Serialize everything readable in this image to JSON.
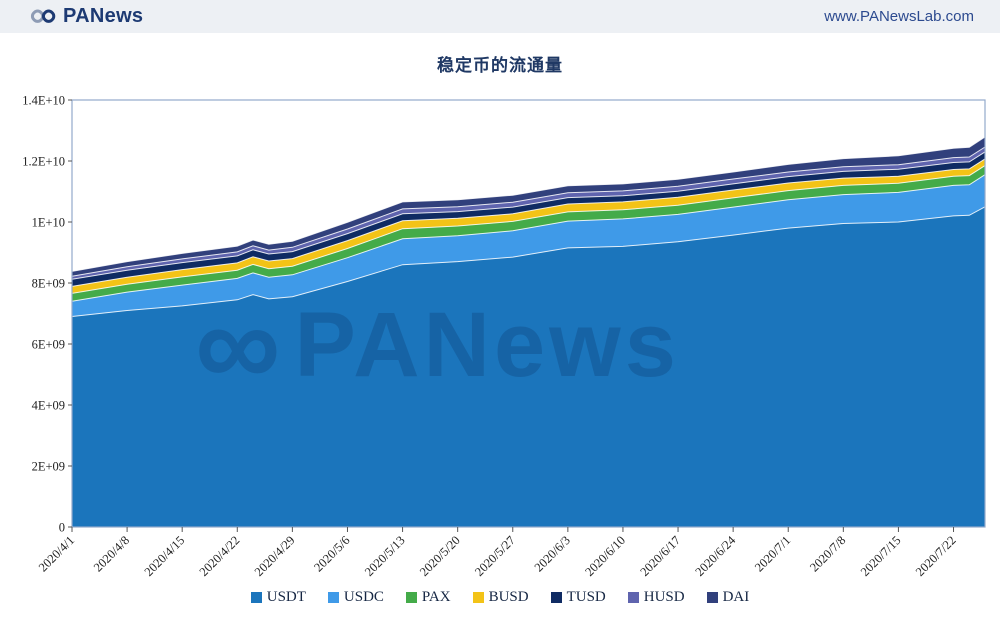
{
  "header": {
    "brand": "PANews",
    "url": "www.PANewsLab.com",
    "brand_color": "#1d3a73",
    "header_bg": "#edf0f4"
  },
  "watermark": {
    "text": "PANews",
    "symbol": "∞"
  },
  "chart_data": {
    "type": "area",
    "stacked": true,
    "title": "稳定币的流通量",
    "xlabel": "",
    "ylabel": "",
    "grid": false,
    "legend_position": "bottom",
    "value_unit": 1000000000,
    "y_max": 14000000000,
    "y_ticks": [
      {
        "value": 0,
        "label": "0"
      },
      {
        "value": 2000000000,
        "label": "2E+09"
      },
      {
        "value": 4000000000,
        "label": "4E+09"
      },
      {
        "value": 6000000000,
        "label": "6E+09"
      },
      {
        "value": 8000000000,
        "label": "8E+09"
      },
      {
        "value": 10000000000,
        "label": "1E+10"
      },
      {
        "value": 12000000000,
        "label": "1.2E+10"
      },
      {
        "value": 14000000000,
        "label": "1.4E+10"
      }
    ],
    "x": [
      "2020/4/1",
      "2020/4/8",
      "2020/4/15",
      "2020/4/22",
      "2020/4/24",
      "2020/4/26",
      "2020/4/29",
      "2020/5/6",
      "2020/5/13",
      "2020/5/20",
      "2020/5/27",
      "2020/6/3",
      "2020/6/10",
      "2020/6/17",
      "2020/6/24",
      "2020/7/1",
      "2020/7/8",
      "2020/7/15",
      "2020/7/22",
      "2020/7/24",
      "2020/7/26"
    ],
    "tick_labels": [
      "2020/4/1",
      "2020/4/8",
      "2020/4/15",
      "2020/4/22",
      "2020/4/29",
      "2020/5/6",
      "2020/5/13",
      "2020/5/20",
      "2020/5/27",
      "2020/6/3",
      "2020/6/10",
      "2020/6/17",
      "2020/6/24",
      "2020/7/1",
      "2020/7/8",
      "2020/7/15",
      "2020/7/22"
    ],
    "series": [
      {
        "name": "USDT",
        "color": "#1b75bc",
        "values_billions": [
          6.9,
          7.1,
          7.25,
          7.45,
          7.62,
          7.48,
          7.55,
          8.05,
          8.6,
          8.7,
          8.85,
          9.15,
          9.2,
          9.35,
          9.57,
          9.8,
          9.95,
          10.0,
          10.2,
          10.22,
          10.5
        ]
      },
      {
        "name": "USDC",
        "color": "#3f9ae8",
        "values_billions": [
          0.5,
          0.6,
          0.68,
          0.7,
          0.71,
          0.71,
          0.72,
          0.78,
          0.85,
          0.85,
          0.86,
          0.88,
          0.9,
          0.9,
          0.92,
          0.93,
          0.95,
          0.97,
          1.0,
          1.0,
          1.05
        ]
      },
      {
        "name": "PAX",
        "color": "#44ab49",
        "values_billions": [
          0.26,
          0.26,
          0.27,
          0.27,
          0.28,
          0.28,
          0.28,
          0.3,
          0.33,
          0.32,
          0.31,
          0.3,
          0.3,
          0.3,
          0.3,
          0.3,
          0.3,
          0.3,
          0.3,
          0.3,
          0.3
        ]
      },
      {
        "name": "BUSD",
        "color": "#f3c317",
        "values_billions": [
          0.23,
          0.23,
          0.24,
          0.24,
          0.25,
          0.25,
          0.25,
          0.26,
          0.26,
          0.25,
          0.25,
          0.26,
          0.26,
          0.26,
          0.26,
          0.25,
          0.24,
          0.23,
          0.22,
          0.22,
          0.22
        ]
      },
      {
        "name": "TUSD",
        "color": "#0f2b63",
        "values_billions": [
          0.23,
          0.23,
          0.23,
          0.23,
          0.23,
          0.23,
          0.23,
          0.23,
          0.23,
          0.22,
          0.22,
          0.21,
          0.2,
          0.2,
          0.2,
          0.21,
          0.22,
          0.23,
          0.23,
          0.23,
          0.23
        ]
      },
      {
        "name": "HUSD",
        "color": "#5f64ae",
        "values_billions": [
          0.1,
          0.11,
          0.12,
          0.13,
          0.13,
          0.13,
          0.14,
          0.15,
          0.16,
          0.16,
          0.16,
          0.16,
          0.16,
          0.16,
          0.16,
          0.15,
          0.15,
          0.15,
          0.16,
          0.16,
          0.16
        ]
      },
      {
        "name": "DAI",
        "color": "#31407c",
        "values_billions": [
          0.16,
          0.17,
          0.18,
          0.19,
          0.19,
          0.19,
          0.2,
          0.22,
          0.23,
          0.23,
          0.23,
          0.23,
          0.23,
          0.23,
          0.23,
          0.25,
          0.27,
          0.29,
          0.31,
          0.32,
          0.33
        ]
      }
    ],
    "axis_color": "#93a9cb",
    "tick_color": "#555555",
    "label_color": "#222222"
  }
}
